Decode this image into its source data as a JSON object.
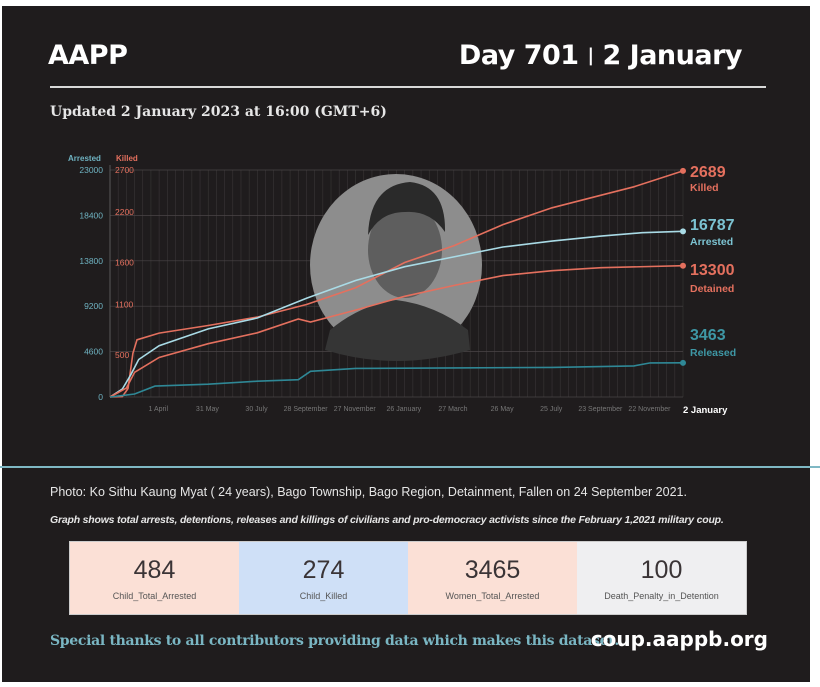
{
  "header": {
    "brand": "AAPP",
    "day": "Day 701",
    "separator": "|",
    "date": "2 January",
    "updated": "Updated 2 January 2023 at 16:00 (GMT+6)"
  },
  "photo_caption": "Photo: Ko Sithu Kaung Myat ( 24 years), Bago Township, Bago Region, Detainment, Fallen on 24 September 2021.",
  "graph_note": "Graph shows total arrests, detentions, releases and killings of civilians and pro-democracy activists since the February 1,2021 military coup.",
  "stats": [
    {
      "value": "484",
      "label": "Child_Total_Arrested",
      "bg": "#fbe0d6"
    },
    {
      "value": "274",
      "label": "Child_Killed",
      "bg": "#cfe0f7"
    },
    {
      "value": "3465",
      "label": "Women_Total_Arrested",
      "bg": "#fbe0d6"
    },
    {
      "value": "100",
      "label": "Death_Penalty_in_Detention",
      "bg": "#efeff1"
    }
  ],
  "footer": {
    "thanks": "Special thanks to all contributors providing data which makes this dataset.",
    "site": "coup.aappb.org"
  },
  "chart_data": {
    "type": "line",
    "x_unit": "days since 1 February 2021",
    "xlim": [
      0,
      700
    ],
    "x_ticks": [
      {
        "day": 59,
        "label": "1 April"
      },
      {
        "day": 119,
        "label": "31 May"
      },
      {
        "day": 179,
        "label": "30 July"
      },
      {
        "day": 239,
        "label": "28 September"
      },
      {
        "day": 299,
        "label": "27 November"
      },
      {
        "day": 359,
        "label": "26 January"
      },
      {
        "day": 419,
        "label": "27 March"
      },
      {
        "day": 479,
        "label": "26 May"
      },
      {
        "day": 539,
        "label": "25 July"
      },
      {
        "day": 599,
        "label": "23 September"
      },
      {
        "day": 659,
        "label": "22 November"
      }
    ],
    "end_label": "2 January",
    "left_axis": {
      "title": "Arrested",
      "ylim": [
        0,
        23000
      ],
      "ticks": [
        "0",
        "4600",
        "9200",
        "13800",
        "18400",
        "23000"
      ],
      "color": "#6fb3c2"
    },
    "right_axis": {
      "title": "Killed",
      "ylim": [
        0,
        2700
      ],
      "ticks": [
        "500",
        "1100",
        "1600",
        "2200",
        "2700"
      ],
      "tick_values": [
        500,
        1100,
        1600,
        2200,
        2700
      ],
      "color": "#e4705e"
    },
    "grid": true,
    "series": [
      {
        "name": "Killed",
        "axis": "killed",
        "color": "#e4705e",
        "final": "2689",
        "points": [
          [
            0,
            0
          ],
          [
            15,
            5
          ],
          [
            22,
            100
          ],
          [
            28,
            520
          ],
          [
            33,
            680
          ],
          [
            60,
            760
          ],
          [
            120,
            850
          ],
          [
            180,
            950
          ],
          [
            240,
            1100
          ],
          [
            300,
            1300
          ],
          [
            360,
            1600
          ],
          [
            420,
            1800
          ],
          [
            480,
            2050
          ],
          [
            540,
            2250
          ],
          [
            600,
            2400
          ],
          [
            640,
            2500
          ],
          [
            700,
            2689
          ]
        ]
      },
      {
        "name": "Arrested",
        "axis": "arrested",
        "color": "#a9dbe6",
        "final": "16787",
        "points": [
          [
            0,
            0
          ],
          [
            15,
            800
          ],
          [
            25,
            2200
          ],
          [
            35,
            3800
          ],
          [
            60,
            5200
          ],
          [
            120,
            6900
          ],
          [
            180,
            8000
          ],
          [
            240,
            10000
          ],
          [
            300,
            11800
          ],
          [
            360,
            13200
          ],
          [
            420,
            14200
          ],
          [
            480,
            15200
          ],
          [
            540,
            15800
          ],
          [
            600,
            16300
          ],
          [
            650,
            16650
          ],
          [
            700,
            16787
          ]
        ]
      },
      {
        "name": "Detained",
        "axis": "arrested",
        "color": "#e4705e",
        "final": "13300",
        "points": [
          [
            0,
            0
          ],
          [
            20,
            900
          ],
          [
            30,
            2500
          ],
          [
            60,
            4000
          ],
          [
            120,
            5400
          ],
          [
            180,
            6500
          ],
          [
            230,
            7900
          ],
          [
            245,
            7600
          ],
          [
            300,
            8800
          ],
          [
            360,
            10200
          ],
          [
            420,
            11300
          ],
          [
            480,
            12300
          ],
          [
            540,
            12800
          ],
          [
            600,
            13100
          ],
          [
            700,
            13300
          ]
        ]
      },
      {
        "name": "Released",
        "axis": "arrested",
        "color": "#2f8896",
        "final": "3463",
        "points": [
          [
            0,
            0
          ],
          [
            30,
            300
          ],
          [
            55,
            1100
          ],
          [
            120,
            1300
          ],
          [
            180,
            1600
          ],
          [
            230,
            1750
          ],
          [
            245,
            2600
          ],
          [
            300,
            2900
          ],
          [
            420,
            2950
          ],
          [
            540,
            3000
          ],
          [
            640,
            3150
          ],
          [
            660,
            3450
          ],
          [
            700,
            3463
          ]
        ]
      }
    ]
  }
}
